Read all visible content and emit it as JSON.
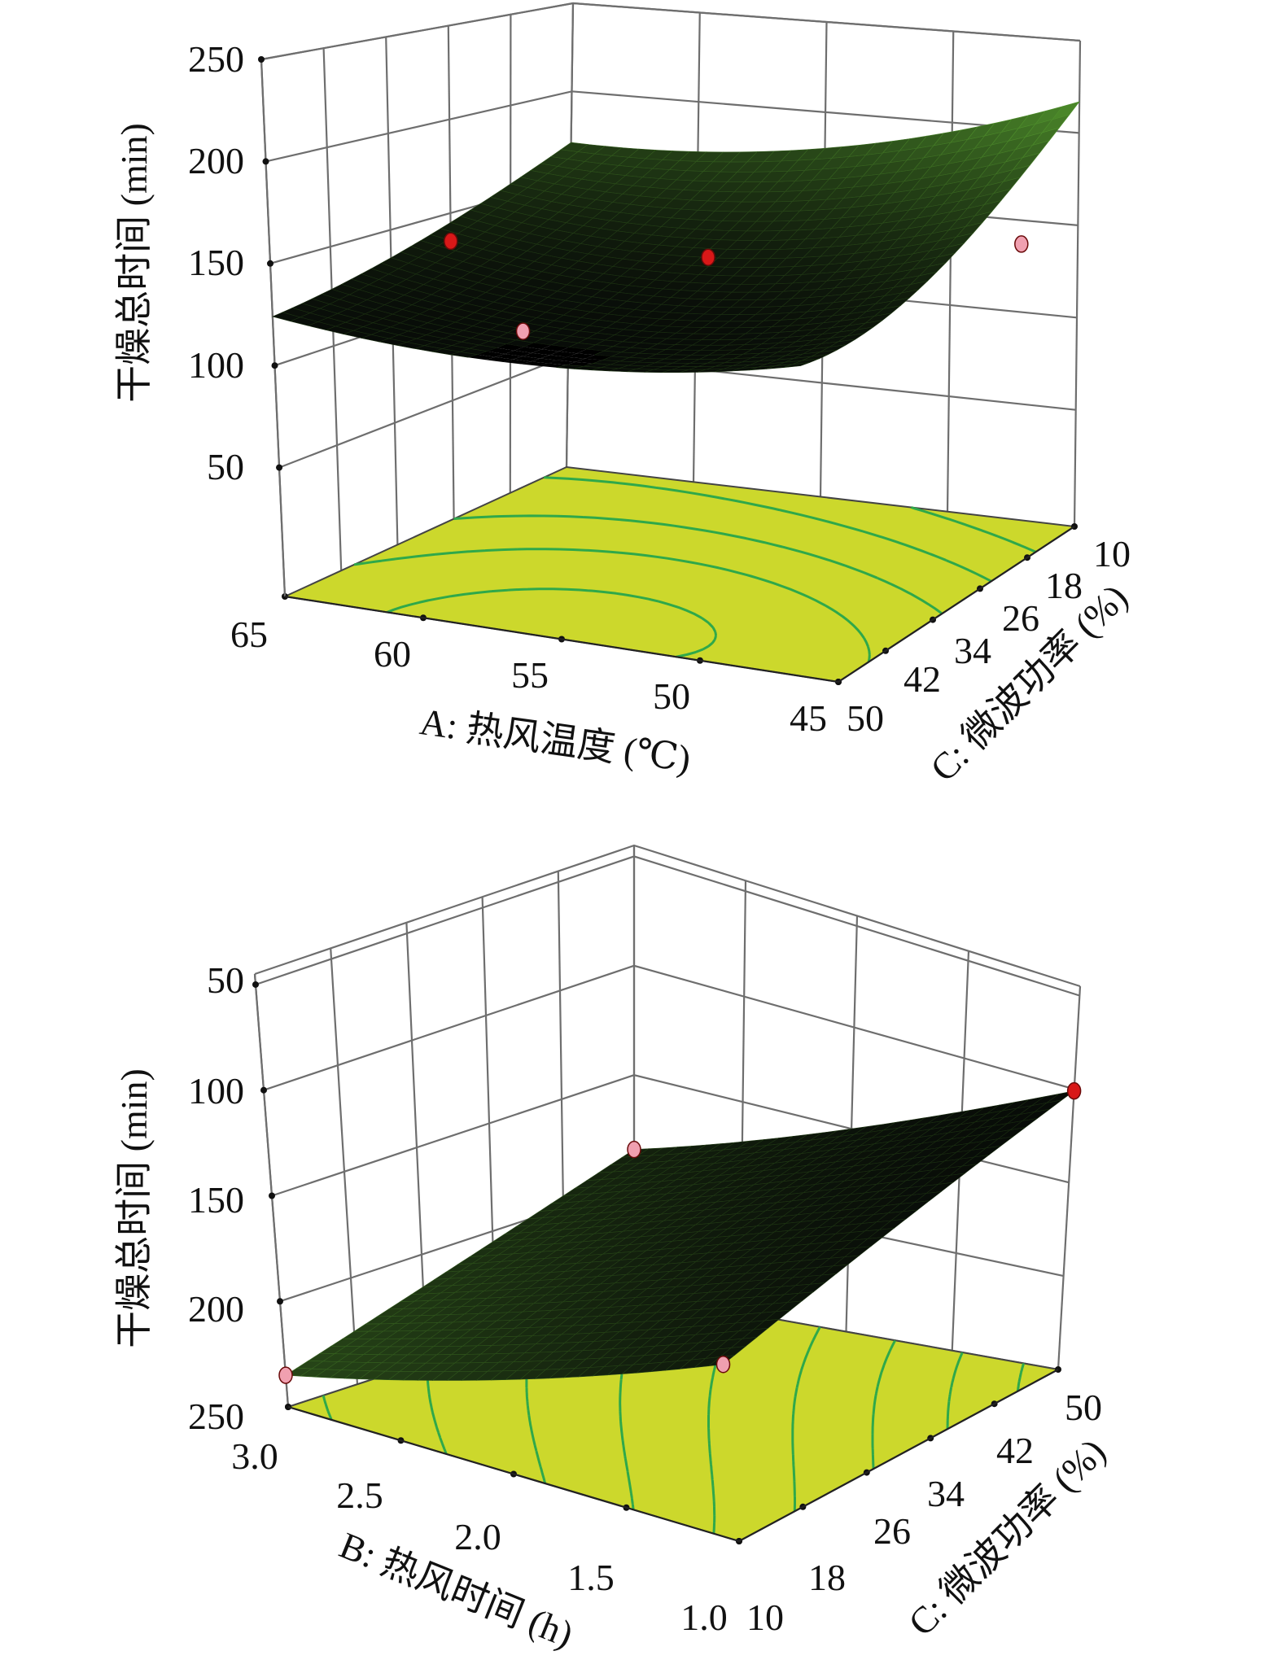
{
  "chart_data": [
    {
      "type": "surface3d",
      "title": "",
      "zlabel": "干燥总时间 (min)",
      "xlabel": "A: 热风温度 (℃)",
      "ylabel": "C: 微波功率 (%)",
      "x_ticks": [
        "65",
        "60",
        "55",
        "50",
        "45"
      ],
      "y_ticks": [
        "50",
        "42",
        "34",
        "26",
        "18",
        "10"
      ],
      "z_ticks": [
        "250",
        "200",
        "150",
        "100",
        "50"
      ],
      "xlim": [
        65,
        45
      ],
      "ylim": [
        50,
        10
      ],
      "zlim": [
        0,
        250
      ],
      "grid": true,
      "surface": {
        "y_values": [
          50,
          30,
          10
        ],
        "x_values": [
          65,
          55,
          45
        ],
        "z": [
          [
            124,
            115,
            129
          ],
          [
            140,
            128,
            150
          ],
          [
            171,
            180,
            217
          ]
        ]
      },
      "contour_levels": [
        118,
        130,
        145,
        165,
        190
      ],
      "points": [
        {
          "x": 65,
          "y": 26,
          "z": 135,
          "color": "#d81818"
        },
        {
          "x": 55,
          "y": 26,
          "z": 140,
          "color": "#d81818"
        },
        {
          "x": 45,
          "y": 18,
          "z": 150,
          "color": "#f0a0b0"
        },
        {
          "x": 60,
          "y": 34,
          "z": 105,
          "color": "#f0a0b0"
        }
      ]
    },
    {
      "type": "surface3d",
      "title": "",
      "zlabel": "干燥总时间 (min)",
      "xlabel": "B: 热风时间 (h)",
      "ylabel": "C: 微波功率 (%)",
      "x_ticks": [
        "3.0",
        "2.5",
        "2.0",
        "1.5",
        "1.0"
      ],
      "y_ticks": [
        "10",
        "18",
        "26",
        "34",
        "42",
        "50"
      ],
      "z_ticks": [
        "50",
        "100",
        "150",
        "200",
        "250"
      ],
      "xlim": [
        3.0,
        1.0
      ],
      "ylim": [
        10,
        50
      ],
      "zlim": [
        250,
        50
      ],
      "grid": true,
      "surface": {
        "y_values": [
          10,
          30,
          50
        ],
        "x_values": [
          3.0,
          2.0,
          1.0
        ],
        "z": [
          [
            235,
            205,
            165
          ],
          [
            210,
            175,
            135
          ],
          [
            184,
            150,
            101
          ]
        ]
      },
      "contour_levels": [
        110,
        125,
        140,
        155,
        170,
        185,
        200,
        215,
        230
      ],
      "points": [
        {
          "x": 3.0,
          "y": 10,
          "z": 235,
          "color": "#f0a0b0"
        },
        {
          "x": 3.0,
          "y": 50,
          "z": 184,
          "color": "#f0a0b0"
        },
        {
          "x": 1.0,
          "y": 50,
          "z": 101,
          "color": "#d81818"
        },
        {
          "x": 1.0,
          "y": 10,
          "z": 165,
          "color": "#f0a0b0"
        }
      ]
    }
  ],
  "colors": {
    "floor": "#ccd82c",
    "contour": "#2fa84a",
    "surface_low": "#080c08",
    "surface_high": "#4f8f2c"
  }
}
